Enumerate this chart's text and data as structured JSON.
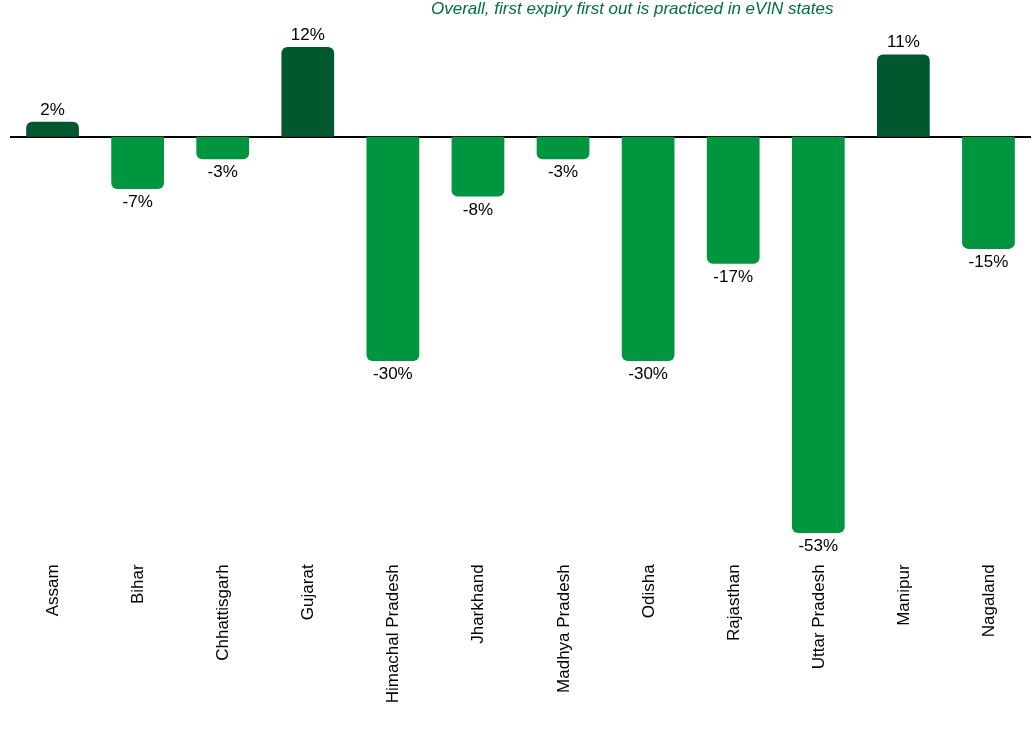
{
  "chart_data": {
    "type": "bar",
    "title": "Overall, first expiry first out is practiced in eVIN states",
    "categories": [
      "Assam",
      "Bihar",
      "Chhattisgarh",
      "Gujarat",
      "Himachal Pradesh",
      "Jharkhand",
      "Madhya Pradesh",
      "Odisha",
      "Rajasthan",
      "Uttar Pradesh",
      "Manipur",
      "Nagaland"
    ],
    "values": [
      2,
      -7,
      -3,
      12,
      -30,
      -8,
      -3,
      -30,
      -17,
      -53,
      11,
      -15
    ],
    "colors": [
      "#00592e",
      "#00963f",
      "#00963f",
      "#00592e",
      "#00963f",
      "#00963f",
      "#00963f",
      "#00963f",
      "#00963f",
      "#00963f",
      "#00592e",
      "#00963f"
    ],
    "value_labels": [
      "2%",
      "-7%",
      "-3%",
      "12%",
      "-30%",
      "-8%",
      "-3%",
      "-30%",
      "-17%",
      "-53%",
      "11%",
      "-15%"
    ],
    "grid": false,
    "tick_labels": "x"
  }
}
